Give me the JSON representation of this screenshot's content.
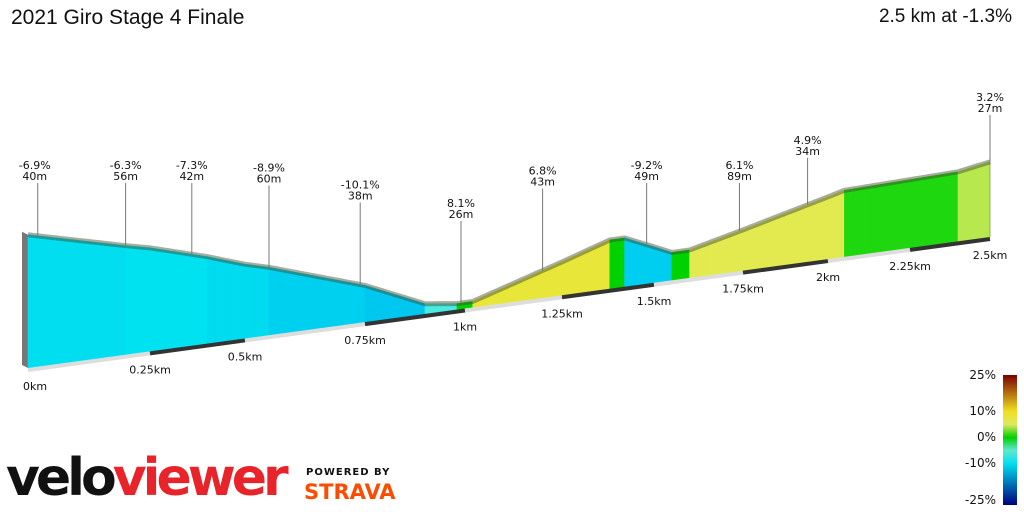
{
  "header": {
    "title": "2021 Giro Stage 4 Finale",
    "summary": "2.5 km at -1.3%"
  },
  "chart_data": {
    "type": "area",
    "title": "2021 Giro Stage 4 Finale",
    "xlabel": "",
    "ylabel": "",
    "xlim_km": [
      0,
      2.5
    ],
    "x_ticks": [
      "0km",
      "0.25km",
      "0.5km",
      "0.75km",
      "1km",
      "1.25km",
      "1.5km",
      "1.75km",
      "2km",
      "2.25km",
      "2.5km"
    ],
    "segments_grade_percent": [
      {
        "from_km": 0.0,
        "to_km": 0.2,
        "grade": -6.9
      },
      {
        "from_km": 0.2,
        "to_km": 0.4,
        "grade": -6.3
      },
      {
        "from_km": 0.4,
        "to_km": 0.55,
        "grade": -7.3
      },
      {
        "from_km": 0.55,
        "to_km": 0.75,
        "grade": -8.9
      },
      {
        "from_km": 0.75,
        "to_km": 0.9,
        "grade": -10.1
      },
      {
        "from_km": 0.9,
        "to_km": 0.98,
        "grade": -3
      },
      {
        "from_km": 0.98,
        "to_km": 1.02,
        "grade": 0
      },
      {
        "from_km": 1.02,
        "to_km": 1.38,
        "grade": 6.8
      },
      {
        "from_km": 1.38,
        "to_km": 1.42,
        "grade": 0
      },
      {
        "from_km": 1.42,
        "to_km": 1.55,
        "grade": -9.2
      },
      {
        "from_km": 1.55,
        "to_km": 1.6,
        "grade": 0
      },
      {
        "from_km": 1.6,
        "to_km": 2.05,
        "grade": 4.9
      },
      {
        "from_km": 2.05,
        "to_km": 2.4,
        "grade": 0.5
      },
      {
        "from_km": 2.4,
        "to_km": 2.5,
        "grade": 3.2
      }
    ],
    "annotations": [
      {
        "at_km": 0.02,
        "grade": "-6.9%",
        "length": "40m"
      },
      {
        "at_km": 0.2,
        "grade": "-6.3%",
        "length": "56m"
      },
      {
        "at_km": 0.36,
        "grade": "-7.3%",
        "length": "42m"
      },
      {
        "at_km": 0.55,
        "grade": "-8.9%",
        "length": "60m"
      },
      {
        "at_km": 0.74,
        "grade": "-10.1%",
        "length": "38m"
      },
      {
        "at_km": 0.99,
        "grade": "8.1%",
        "length": "26m"
      },
      {
        "at_km": 1.2,
        "grade": "6.8%",
        "length": "43m"
      },
      {
        "at_km": 1.48,
        "grade": "-9.2%",
        "length": "49m"
      },
      {
        "at_km": 1.74,
        "grade": "6.1%",
        "length": "89m"
      },
      {
        "at_km": 1.94,
        "grade": "4.9%",
        "length": "34m"
      },
      {
        "at_km": 2.5,
        "grade": "3.2%",
        "length": "27m"
      }
    ],
    "legend": {
      "placement": "bottom-right",
      "ticks": [
        "25%",
        "10%",
        "0%",
        "-10%",
        "-25%"
      ],
      "colors": {
        "25%": "#7a0000",
        "10%": "#f0e020",
        "0%": "#00d000",
        "-10%": "#00e0f0",
        "-25%": "#000080"
      }
    }
  },
  "branding": {
    "logo_part1": "velo",
    "logo_part2": "viewer",
    "powered_by": "POWERED BY",
    "strava": "STRAVA"
  }
}
